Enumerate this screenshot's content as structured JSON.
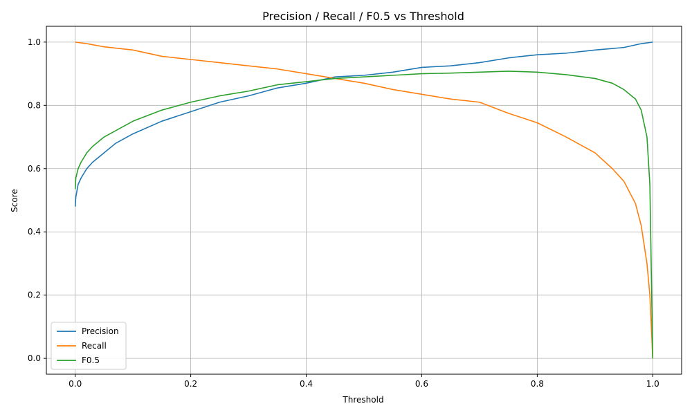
{
  "chart_data": {
    "type": "line",
    "title": "Precision / Recall / F0.5 vs Threshold",
    "xlabel": "Threshold",
    "ylabel": "Score",
    "xlim": [
      -0.05,
      1.05
    ],
    "ylim": [
      -0.05,
      1.05
    ],
    "xticks": [
      0.0,
      0.2,
      0.4,
      0.6,
      0.8,
      1.0
    ],
    "yticks": [
      0.0,
      0.2,
      0.4,
      0.6,
      0.8,
      1.0
    ],
    "xtick_labels": [
      "0.0",
      "0.2",
      "0.4",
      "0.6",
      "0.8",
      "1.0"
    ],
    "ytick_labels": [
      "0.0",
      "0.2",
      "0.4",
      "0.6",
      "0.8",
      "1.0"
    ],
    "grid": true,
    "legend": "lower-left",
    "series": [
      {
        "name": "Precision",
        "color": "#1f77b4",
        "x": [
          0.0,
          0.001,
          0.005,
          0.01,
          0.02,
          0.03,
          0.05,
          0.07,
          0.1,
          0.15,
          0.2,
          0.25,
          0.3,
          0.35,
          0.4,
          0.45,
          0.5,
          0.55,
          0.6,
          0.65,
          0.7,
          0.75,
          0.8,
          0.85,
          0.9,
          0.95,
          0.98,
          1.0
        ],
        "values": [
          0.48,
          0.51,
          0.55,
          0.57,
          0.6,
          0.62,
          0.65,
          0.68,
          0.71,
          0.75,
          0.78,
          0.81,
          0.83,
          0.855,
          0.87,
          0.89,
          0.895,
          0.905,
          0.92,
          0.925,
          0.935,
          0.95,
          0.96,
          0.965,
          0.975,
          0.983,
          0.995,
          1.0
        ]
      },
      {
        "name": "Recall",
        "color": "#ff7f0e",
        "x": [
          0.0,
          0.02,
          0.05,
          0.1,
          0.15,
          0.2,
          0.25,
          0.3,
          0.35,
          0.4,
          0.45,
          0.5,
          0.55,
          0.6,
          0.65,
          0.7,
          0.75,
          0.8,
          0.85,
          0.9,
          0.93,
          0.95,
          0.97,
          0.98,
          0.99,
          0.995,
          1.0
        ],
        "values": [
          1.0,
          0.995,
          0.985,
          0.975,
          0.955,
          0.945,
          0.935,
          0.925,
          0.915,
          0.9,
          0.885,
          0.87,
          0.85,
          0.835,
          0.82,
          0.81,
          0.775,
          0.745,
          0.7,
          0.65,
          0.6,
          0.56,
          0.49,
          0.42,
          0.3,
          0.2,
          0.0
        ]
      },
      {
        "name": "F0.5",
        "color": "#2ca02c",
        "x": [
          0.0,
          0.001,
          0.005,
          0.01,
          0.02,
          0.03,
          0.05,
          0.07,
          0.1,
          0.15,
          0.2,
          0.25,
          0.3,
          0.35,
          0.4,
          0.45,
          0.5,
          0.55,
          0.6,
          0.65,
          0.7,
          0.75,
          0.8,
          0.85,
          0.9,
          0.93,
          0.95,
          0.97,
          0.98,
          0.99,
          0.995,
          1.0
        ],
        "values": [
          0.535,
          0.57,
          0.6,
          0.62,
          0.65,
          0.67,
          0.7,
          0.72,
          0.75,
          0.785,
          0.81,
          0.83,
          0.845,
          0.865,
          0.875,
          0.885,
          0.89,
          0.895,
          0.9,
          0.902,
          0.905,
          0.908,
          0.905,
          0.897,
          0.885,
          0.87,
          0.85,
          0.82,
          0.785,
          0.7,
          0.55,
          0.0
        ]
      }
    ]
  }
}
